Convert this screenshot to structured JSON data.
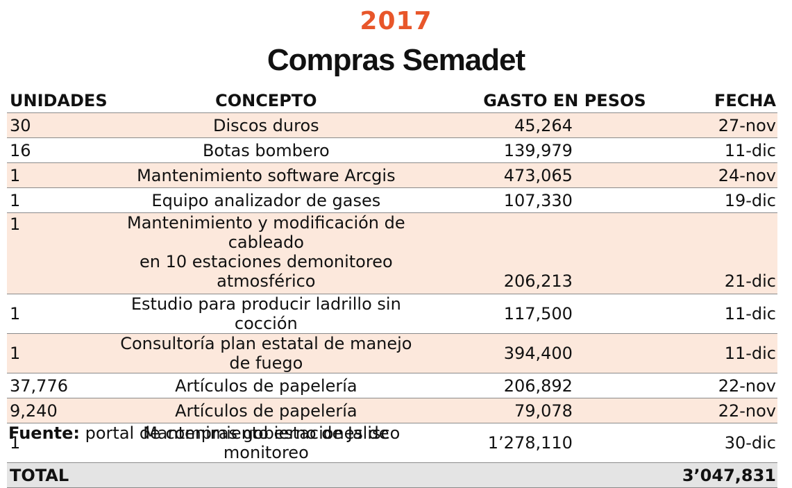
{
  "header": {
    "year": "2017",
    "title": "Compras Semadet"
  },
  "table": {
    "columns": [
      "UNIDADES",
      "CONCEPTO",
      "GASTO EN PESOS",
      "FECHA"
    ],
    "rows": [
      {
        "unidades": "30",
        "concepto": "Discos duros",
        "gasto": "45,264",
        "fecha": "27-nov"
      },
      {
        "unidades": "16",
        "concepto": "Botas bombero",
        "gasto": "139,979",
        "fecha": "11-dic"
      },
      {
        "unidades": "1",
        "concepto": "Mantenimiento software Arcgis",
        "gasto": "473,065",
        "fecha": "24-nov"
      },
      {
        "unidades": "1",
        "concepto": "Equipo analizador de gases",
        "gasto": "107,330",
        "fecha": "19-dic"
      },
      {
        "unidades": "1",
        "concepto": "Mantenimiento y modificación de cableado",
        "concepto2": "en 10 estaciones demonitoreo atmosférico",
        "gasto": "206,213",
        "fecha": "21-dic"
      },
      {
        "unidades": "1",
        "concepto": "Estudio para producir ladrillo sin cocción",
        "gasto": "117,500",
        "fecha": "11-dic"
      },
      {
        "unidades": "1",
        "concepto": "Consultoría plan estatal de manejo de fuego",
        "gasto": "394,400",
        "fecha": "11-dic"
      },
      {
        "unidades": "37,776",
        "concepto": "Artículos de papelería",
        "gasto": "206,892",
        "fecha": "22-nov"
      },
      {
        "unidades": "9,240",
        "concepto": "Artículos de papelería",
        "gasto": "79,078",
        "fecha": "22-nov"
      },
      {
        "unidades": "1",
        "concepto": "Mantenimiento estaciones de monitoreo",
        "gasto": "1’278,110",
        "fecha": "30-dic"
      }
    ],
    "total": {
      "label": "TOTAL",
      "value": "3’047,831"
    }
  },
  "source": {
    "label": "Fuente:",
    "text": " portal de compras gobierno de Jalisco"
  },
  "colors": {
    "accent": "#e8562a",
    "row_highlight": "#fce8dc",
    "total_bg": "#e4e4e4"
  }
}
